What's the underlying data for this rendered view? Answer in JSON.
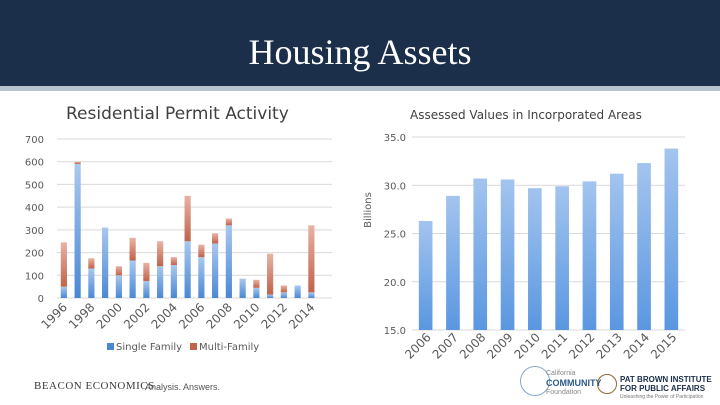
{
  "slide": {
    "title": "Housing Assets"
  },
  "footer": {
    "beacon": "BEACON ECONOMICS",
    "tagline": "Analysis. Answers.",
    "community_logo_line1": "California",
    "community_logo_line2": "COMMUNITY",
    "community_logo_line3": "Foundation",
    "pb_logo_line1": "PAT BROWN INSTITUTE",
    "pb_logo_line2": "FOR PUBLIC AFFAIRS",
    "pb_logo_line3": "Unleashing the Power of Participation"
  },
  "colors": {
    "banner": "#1b2f4b",
    "single_family": "#4a88d4",
    "multi_family": "#c0634b",
    "assessed_bar": "#5a97e0"
  },
  "chart_data": [
    {
      "type": "bar",
      "stacked": true,
      "title": "Residential Permit Activity",
      "categories": [
        "1996",
        "1997",
        "1998",
        "1999",
        "2000",
        "2001",
        "2002",
        "2003",
        "2004",
        "2005",
        "2006",
        "2007",
        "2008",
        "2009",
        "2010",
        "2011",
        "2012",
        "2013",
        "2014",
        "2015"
      ],
      "tick_labels": [
        "1996",
        "1998",
        "2000",
        "2002",
        "2004",
        "2006",
        "2008",
        "2010",
        "2012",
        "2014"
      ],
      "series": [
        {
          "name": "Single Family",
          "values": [
            50,
            590,
            130,
            310,
            100,
            165,
            75,
            140,
            145,
            250,
            180,
            240,
            320,
            85,
            45,
            15,
            25,
            55,
            25,
            0
          ]
        },
        {
          "name": "Multi-Family",
          "values": [
            195,
            10,
            45,
            0,
            40,
            100,
            80,
            110,
            35,
            200,
            55,
            45,
            30,
            0,
            35,
            180,
            30,
            0,
            295,
            0
          ]
        }
      ],
      "ylim": [
        0,
        700
      ],
      "yticks": [
        0,
        100,
        200,
        300,
        400,
        500,
        600,
        700
      ],
      "legend": "bottom",
      "grid": true
    },
    {
      "type": "bar",
      "title": "Assessed Values in Incorporated Areas",
      "ylabel": "Billions",
      "categories": [
        "2006",
        "2007",
        "2008",
        "2009",
        "2010",
        "2011",
        "2012",
        "2013",
        "2014",
        "2015"
      ],
      "values": [
        26.3,
        28.9,
        30.7,
        30.6,
        29.7,
        29.9,
        30.4,
        31.2,
        32.3,
        33.8
      ],
      "ylim": [
        15.0,
        35.0
      ],
      "yticks": [
        "15.0",
        "20.0",
        "25.0",
        "30.0",
        "35.0"
      ],
      "grid": true
    }
  ]
}
